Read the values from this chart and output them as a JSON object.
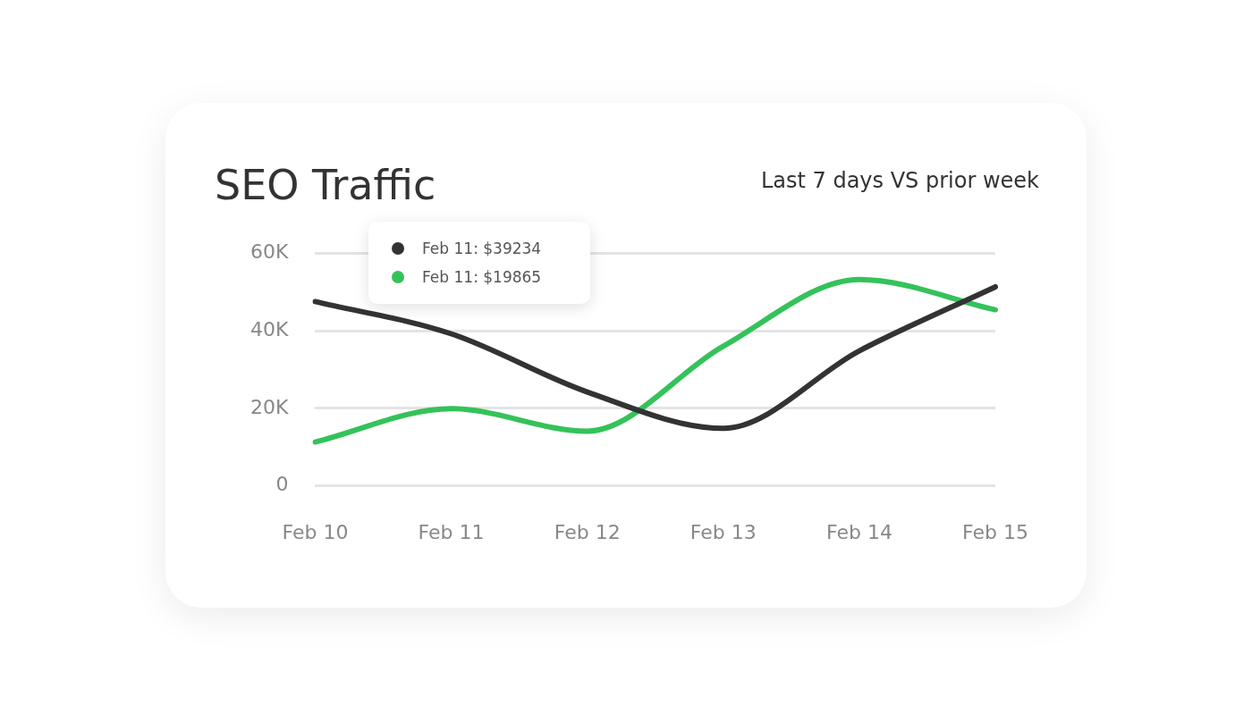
{
  "chart_data": {
    "type": "line",
    "title": "SEO Traffic",
    "subtitle": "Last 7 days VS prior week",
    "categories": [
      "Feb 10",
      "Feb 11",
      "Feb 12",
      "Feb 13",
      "Feb 14",
      "Feb 15"
    ],
    "ylim": [
      0,
      60
    ],
    "yticks": [
      {
        "value": 0,
        "label": "0"
      },
      {
        "value": 20,
        "label": "20K"
      },
      {
        "value": 40,
        "label": "40K"
      },
      {
        "value": 60,
        "label": "60K"
      }
    ],
    "grid": "y",
    "legend": false,
    "marker": "none",
    "line_style": "solid",
    "series": [
      {
        "color": "#333333",
        "values": [
          47.5,
          39.2,
          24.2,
          14.8,
          34.8,
          51.3
        ]
      },
      {
        "color": "#34c25a",
        "values": [
          11.3,
          19.9,
          14.1,
          36.0,
          53.2,
          45.4
        ]
      }
    ],
    "annotations": [
      "Feb 11: $39234",
      "Feb 11: $19865"
    ]
  }
}
